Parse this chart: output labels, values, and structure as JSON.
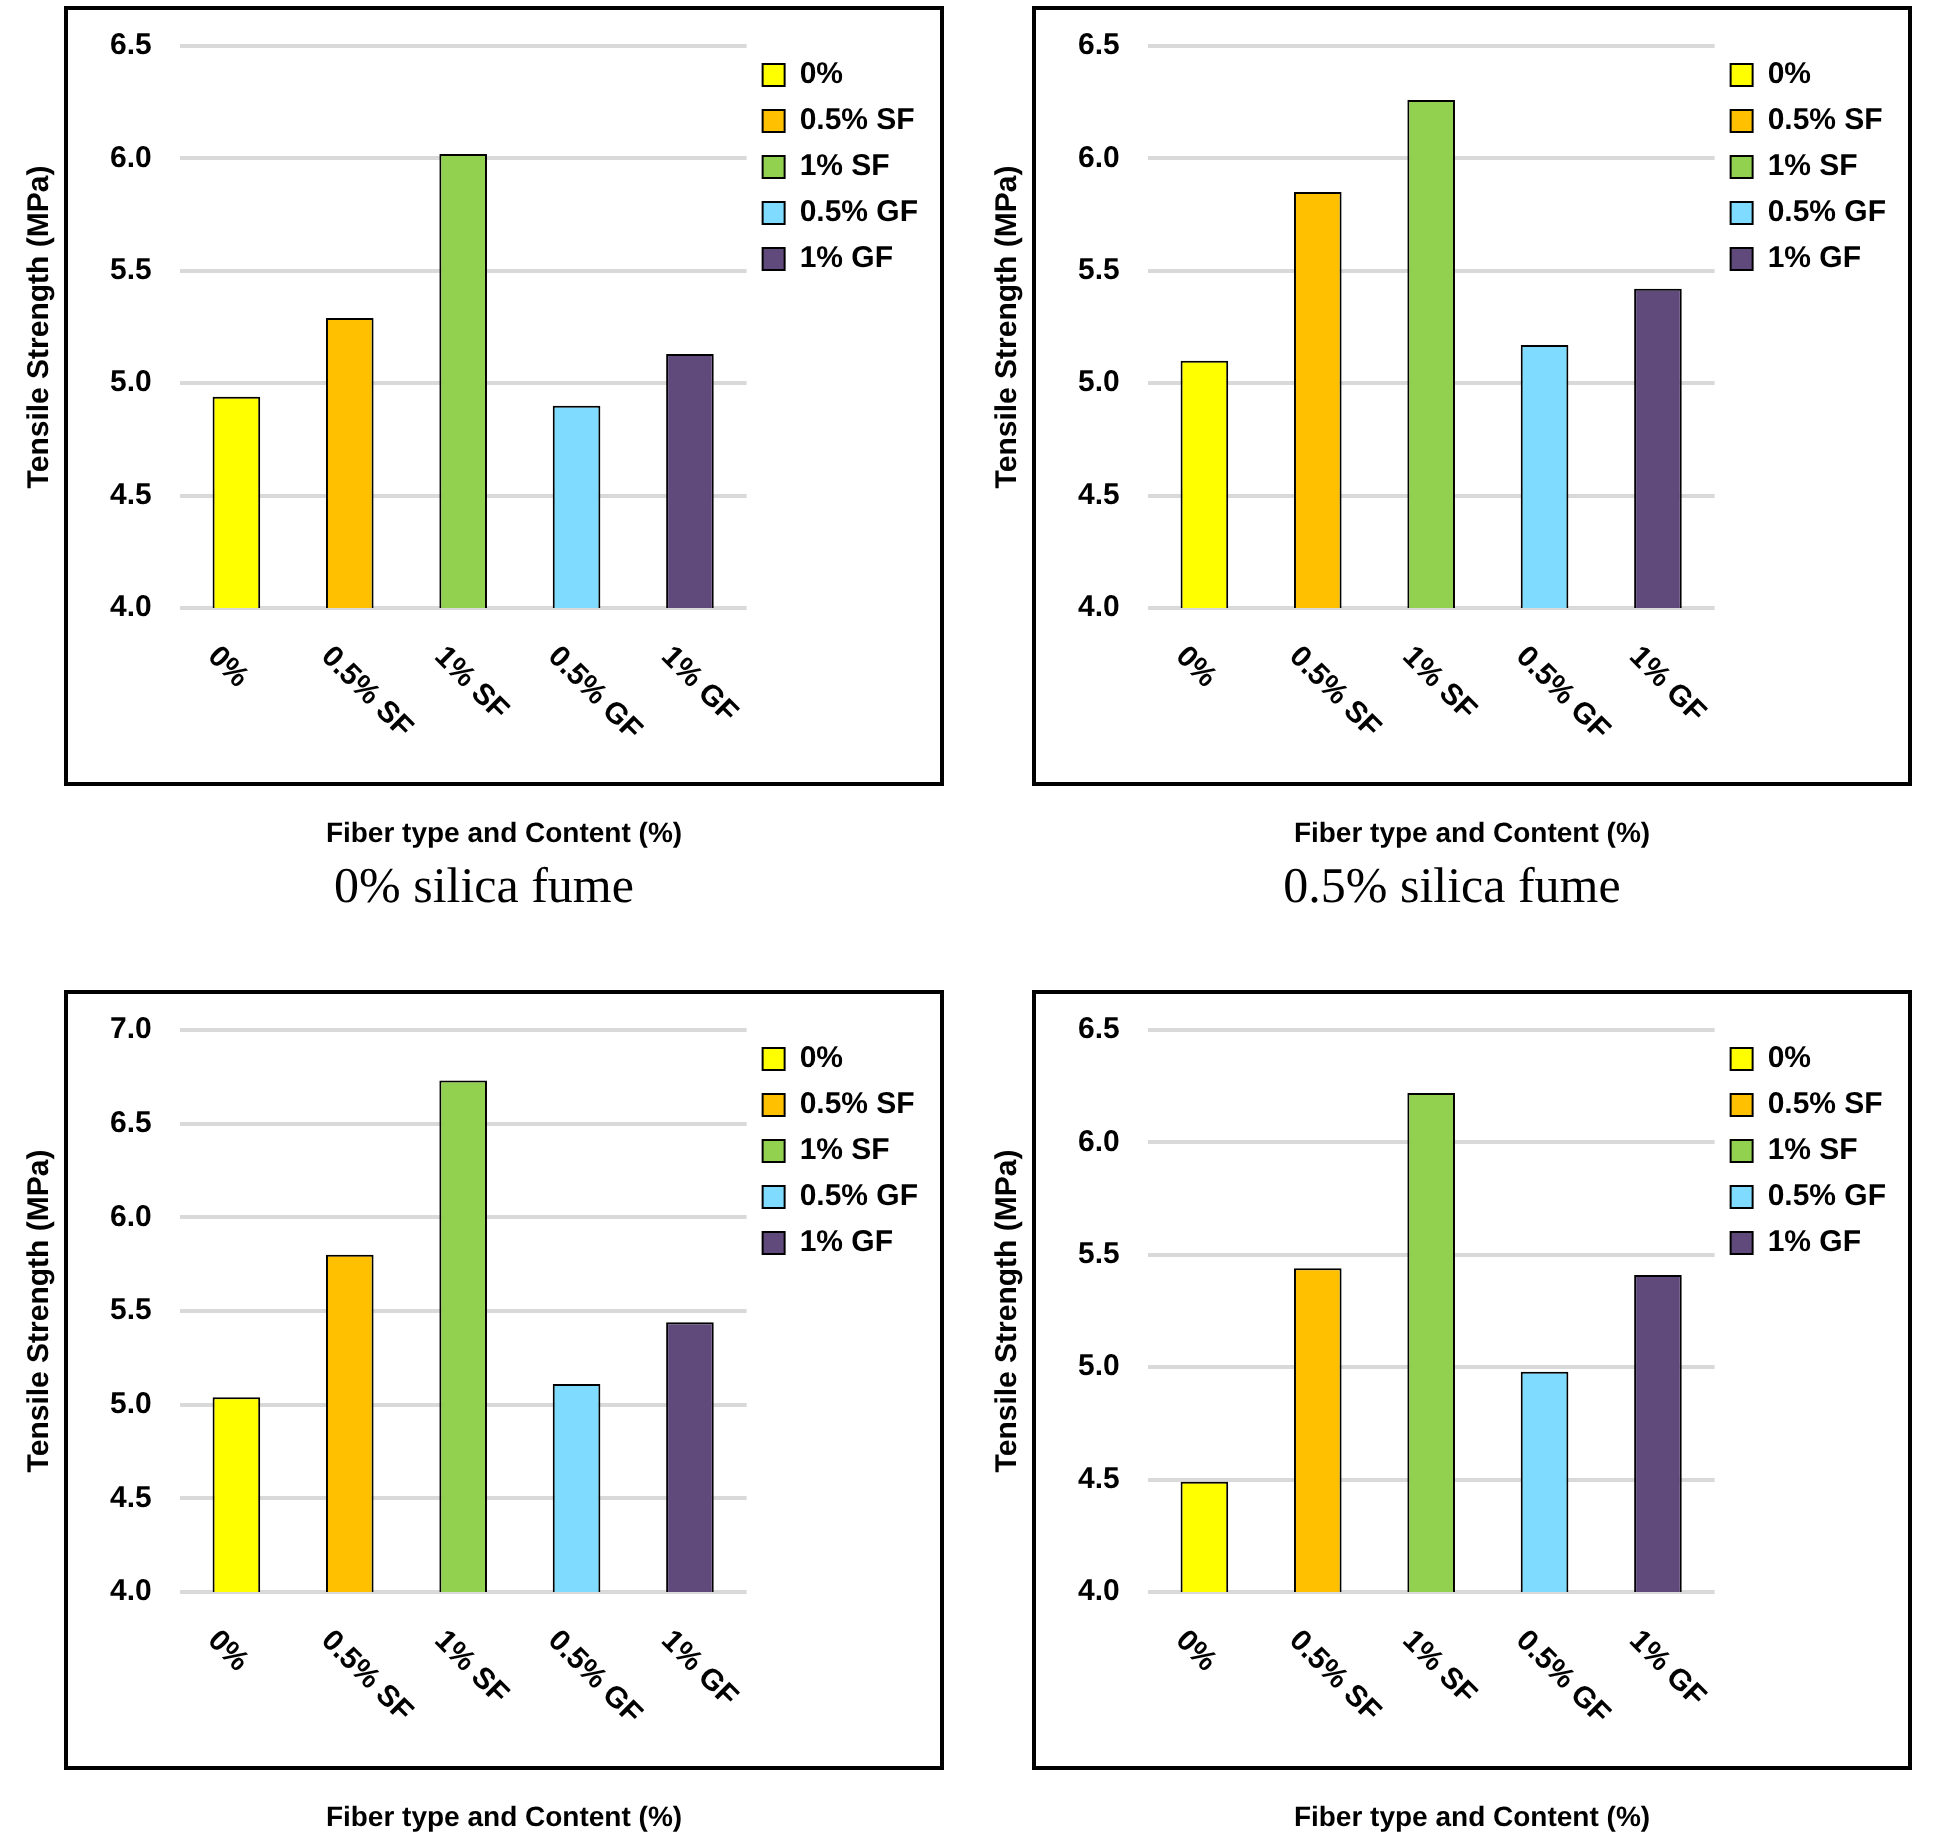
{
  "chart_data": [
    {
      "type": "bar",
      "categories": [
        "0%",
        "0.5% SF",
        "1% SF",
        "0.5% GF",
        "1% GF"
      ],
      "series": [
        {
          "name": "0%",
          "color": "#ffff00",
          "values": [
            4.94,
            null,
            null,
            null,
            null
          ]
        },
        {
          "name": "0.5% SF",
          "color": "#ffc000",
          "values": [
            null,
            5.29,
            null,
            null,
            null
          ]
        },
        {
          "name": "1% SF",
          "color": "#92d050",
          "values": [
            null,
            null,
            6.02,
            null,
            null
          ]
        },
        {
          "name": "0.5% GF",
          "color": "#7fdbff",
          "values": [
            null,
            null,
            null,
            4.9,
            null
          ]
        },
        {
          "name": "1% GF",
          "color": "#604a7b",
          "values": [
            null,
            null,
            null,
            null,
            5.13
          ]
        }
      ],
      "xlabel": "Fiber type and Content (%)",
      "ylabel": "Tensile Strength (MPa)",
      "ylim": [
        4,
        6.5
      ],
      "yticks": [
        {
          "value": 4,
          "label": "4.0"
        },
        4.5,
        {
          "value": 5,
          "label": "5.0"
        },
        5.5,
        {
          "value": 6,
          "label": "6.0"
        },
        6.5
      ],
      "grid": "y",
      "legend": "top right",
      "annotations": [
        "0% silica fume"
      ]
    },
    {
      "type": "bar",
      "categories": [
        "0%",
        "0.5% SF",
        "1% SF",
        "0.5% GF",
        "1% GF"
      ],
      "series": [
        {
          "name": "0%",
          "color": "#ffff00",
          "values": [
            5.1,
            null,
            null,
            null,
            null
          ]
        },
        {
          "name": "0.5% SF",
          "color": "#ffc000",
          "values": [
            null,
            5.85,
            null,
            null,
            null
          ]
        },
        {
          "name": "1% SF",
          "color": "#92d050",
          "values": [
            null,
            null,
            6.26,
            null,
            null
          ]
        },
        {
          "name": "0.5% GF",
          "color": "#7fdbff",
          "values": [
            null,
            null,
            null,
            5.17,
            null
          ]
        },
        {
          "name": "1% GF",
          "color": "#604a7b",
          "values": [
            null,
            null,
            null,
            null,
            5.42
          ]
        }
      ],
      "xlabel": "Fiber type and Content (%)",
      "ylabel": "Tensile Strength (MPa)",
      "ylim": [
        4,
        6.5
      ],
      "yticks": [
        {
          "value": 4,
          "label": "4.0"
        },
        4.5,
        {
          "value": 5,
          "label": "5.0"
        },
        5.5,
        {
          "value": 6,
          "label": "6.0"
        },
        6.5
      ],
      "grid": "y",
      "legend": "top right",
      "annotations": [
        "0.5% silica fume"
      ]
    },
    {
      "type": "bar",
      "categories": [
        "0%",
        "0.5% SF",
        "1% SF",
        "0.5% GF",
        "1% GF"
      ],
      "series": [
        {
          "name": "0%",
          "color": "#ffff00",
          "values": [
            5.04,
            null,
            null,
            null,
            null
          ]
        },
        {
          "name": "0.5% SF",
          "color": "#ffc000",
          "values": [
            null,
            5.8,
            null,
            null,
            null
          ]
        },
        {
          "name": "1% SF",
          "color": "#92d050",
          "values": [
            null,
            null,
            6.73,
            null,
            null
          ]
        },
        {
          "name": "0.5% GF",
          "color": "#7fdbff",
          "values": [
            null,
            null,
            null,
            5.11,
            null
          ]
        },
        {
          "name": "1% GF",
          "color": "#604a7b",
          "values": [
            null,
            null,
            null,
            null,
            5.44
          ]
        }
      ],
      "xlabel": "Fiber type and Content (%)",
      "ylabel": "Tensile Strength (MPa)",
      "ylim": [
        4,
        7
      ],
      "yticks": [
        {
          "value": 4,
          "label": "4.0"
        },
        4.5,
        {
          "value": 5,
          "label": "5.0"
        },
        5.5,
        {
          "value": 6,
          "label": "6.0"
        },
        6.5,
        {
          "value": 7,
          "label": "7.0"
        }
      ],
      "grid": "y",
      "legend": "top right"
    },
    {
      "type": "bar",
      "categories": [
        "0%",
        "0.5% SF",
        "1% SF",
        "0.5% GF",
        "1% GF"
      ],
      "series": [
        {
          "name": "0%",
          "color": "#ffff00",
          "values": [
            4.49,
            null,
            null,
            null,
            null
          ]
        },
        {
          "name": "0.5% SF",
          "color": "#ffc000",
          "values": [
            null,
            5.44,
            null,
            null,
            null
          ]
        },
        {
          "name": "1% SF",
          "color": "#92d050",
          "values": [
            null,
            null,
            6.22,
            null,
            null
          ]
        },
        {
          "name": "0.5% GF",
          "color": "#7fdbff",
          "values": [
            null,
            null,
            null,
            4.98,
            null
          ]
        },
        {
          "name": "1% GF",
          "color": "#604a7b",
          "values": [
            null,
            null,
            null,
            null,
            5.41
          ]
        }
      ],
      "xlabel": "Fiber type and Content (%)",
      "ylabel": "Tensile Strength (MPa)",
      "ylim": [
        4,
        6.5
      ],
      "yticks": [
        {
          "value": 4,
          "label": "4.0"
        },
        4.5,
        {
          "value": 5,
          "label": "5.0"
        },
        5.5,
        {
          "value": 6,
          "label": "6.0"
        },
        6.5
      ],
      "grid": "y",
      "legend": "top right"
    }
  ]
}
